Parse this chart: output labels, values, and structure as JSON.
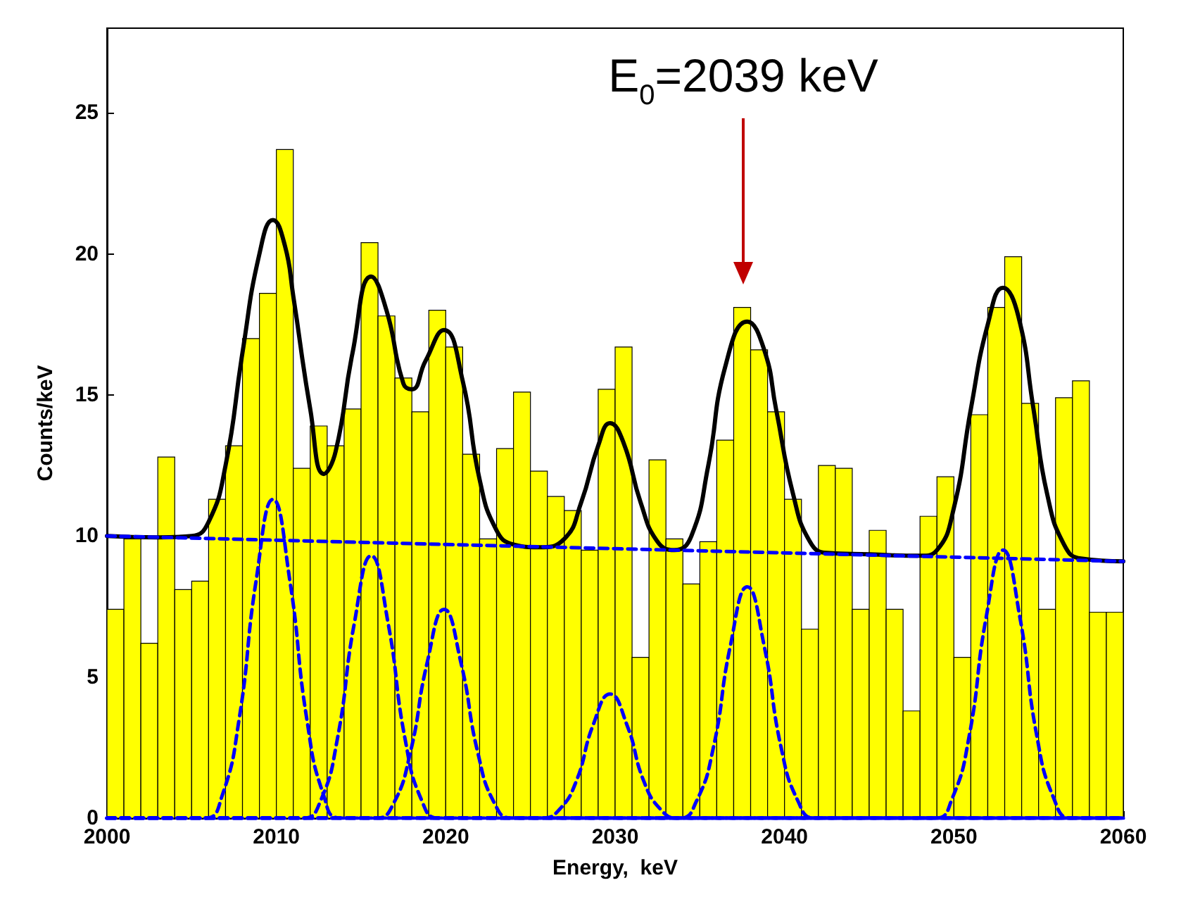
{
  "chart_data": {
    "type": "histogram",
    "xlabel": "Energy,  keV",
    "ylabel": "Counts/keV",
    "bins": [
      2000,
      2001,
      2002,
      2003,
      2004,
      2005,
      2006,
      2007,
      2008,
      2009,
      2010,
      2011,
      2012,
      2013,
      2014,
      2015,
      2016,
      2017,
      2018,
      2019,
      2020,
      2021,
      2022,
      2023,
      2024,
      2025,
      2026,
      2027,
      2028,
      2029,
      2030,
      2031,
      2032,
      2033,
      2034,
      2035,
      2036,
      2037,
      2038,
      2039,
      2040,
      2041,
      2042,
      2043,
      2044,
      2045,
      2046,
      2047,
      2048,
      2049,
      2050,
      2051,
      2052,
      2053,
      2054,
      2055,
      2056,
      2057,
      2058,
      2059,
      2060
    ],
    "values": [
      7.4,
      9.9,
      6.2,
      12.8,
      8.1,
      8.4,
      11.3,
      13.2,
      17.0,
      18.6,
      23.7,
      12.4,
      13.9,
      13.2,
      14.5,
      20.4,
      17.8,
      15.6,
      14.4,
      18.0,
      16.7,
      12.9,
      9.9,
      13.1,
      15.1,
      12.3,
      11.4,
      10.9,
      9.5,
      15.2,
      16.7,
      5.7,
      12.7,
      9.9,
      8.3,
      9.8,
      13.4,
      18.1,
      16.6,
      14.4,
      11.3,
      6.7,
      12.5,
      12.4,
      7.4,
      10.2,
      7.4,
      3.8,
      10.7,
      12.1,
      5.7,
      14.3,
      18.1,
      19.9,
      14.7,
      7.4,
      14.9,
      15.5,
      7.3,
      7.3
    ],
    "color": "#ffff00",
    "series": [
      {
        "type": "line",
        "color": "#000000",
        "line_style": "solid",
        "x": [
          2000,
          2003,
          2005,
          2006,
          2007,
          2008,
          2009,
          2009.8,
          2010.5,
          2011,
          2012,
          2012.8,
          2013.5,
          2014.5,
          2015.6,
          2016.5,
          2017.5,
          2018,
          2018.8,
          2019.9,
          2021,
          2022,
          2023,
          2024,
          2025.5,
          2027,
          2028,
          2029,
          2029.7,
          2030.5,
          2031.5,
          2032.5,
          2033.5,
          2034.5,
          2035.5,
          2036.5,
          2037.8,
          2038.8,
          2039.5,
          2040.5,
          2041.5,
          2042.5,
          2045,
          2048,
          2049,
          2050,
          2051,
          2052,
          2052.9,
          2053.8,
          2054.7,
          2055.5,
          2056.5,
          2057.5,
          2060
        ],
        "values": [
          10.0,
          9.95,
          10.0,
          10.5,
          12.5,
          16.5,
          20.0,
          21.2,
          20.3,
          18.5,
          14.5,
          12.2,
          13.0,
          16.5,
          19.2,
          18.0,
          15.4,
          15.2,
          16.2,
          17.3,
          15.5,
          12.0,
          10.2,
          9.7,
          9.6,
          9.9,
          11.2,
          13.2,
          14.0,
          13.3,
          11.2,
          9.8,
          9.5,
          10.0,
          12.5,
          16.0,
          17.6,
          16.6,
          14.5,
          11.5,
          9.8,
          9.4,
          9.35,
          9.3,
          9.5,
          11.0,
          14.5,
          17.5,
          18.8,
          17.8,
          14.5,
          11.5,
          9.7,
          9.2,
          9.1
        ]
      },
      {
        "type": "line",
        "color": "#0000ff",
        "line_style": "dashed",
        "x": [
          2000,
          2060
        ],
        "values": [
          10.0,
          9.1
        ]
      },
      {
        "type": "line",
        "color": "#0000ff",
        "line_style": "dashed",
        "x": [
          2000,
          2005.8,
          2006.8,
          2007.8,
          2008.8,
          2009.8,
          2010.8,
          2011.8,
          2012.8,
          2013.8,
          2060
        ],
        "values": [
          0,
          0,
          0.8,
          3.5,
          8.4,
          11.3,
          8.4,
          3.5,
          0.8,
          0,
          0
        ]
      },
      {
        "type": "line",
        "color": "#0000ff",
        "line_style": "dashed",
        "x": [
          2000,
          2011.6,
          2012.6,
          2013.6,
          2014.6,
          2015.6,
          2016.6,
          2017.6,
          2018.6,
          2019.6,
          2060
        ],
        "values": [
          0,
          0,
          0.6,
          2.8,
          6.9,
          9.3,
          6.9,
          2.8,
          0.6,
          0,
          0
        ]
      },
      {
        "type": "line",
        "color": "#0000ff",
        "line_style": "dashed",
        "x": [
          2000,
          2015.9,
          2016.9,
          2017.9,
          2018.9,
          2019.9,
          2020.9,
          2021.9,
          2022.9,
          2023.9,
          2060
        ],
        "values": [
          0,
          0,
          0.5,
          2.3,
          5.5,
          7.4,
          5.5,
          2.3,
          0.5,
          0,
          0
        ]
      },
      {
        "type": "line",
        "color": "#0000ff",
        "line_style": "dashed",
        "x": [
          2000,
          2025.7,
          2026.7,
          2027.7,
          2028.7,
          2029.7,
          2030.7,
          2031.7,
          2032.7,
          2033.7,
          2060
        ],
        "values": [
          0,
          0,
          0.3,
          1.3,
          3.3,
          4.4,
          3.3,
          1.3,
          0.3,
          0,
          0
        ]
      },
      {
        "type": "line",
        "color": "#0000ff",
        "line_style": "dashed",
        "x": [
          2000,
          2033.8,
          2034.8,
          2035.8,
          2036.8,
          2037.8,
          2038.8,
          2039.8,
          2040.8,
          2041.8,
          2060
        ],
        "values": [
          0,
          0,
          0.6,
          2.5,
          6.1,
          8.2,
          6.1,
          2.5,
          0.6,
          0,
          0
        ]
      },
      {
        "type": "line",
        "color": "#0000ff",
        "line_style": "dashed",
        "x": [
          2000,
          2048.9,
          2049.9,
          2050.9,
          2051.9,
          2052.9,
          2053.9,
          2054.9,
          2055.9,
          2056.9,
          2060
        ],
        "values": [
          0,
          0,
          0.7,
          2.9,
          7.1,
          9.5,
          7.1,
          2.9,
          0.7,
          0,
          0
        ]
      }
    ],
    "annotations": [
      "E$_{0}$=2039 keV"
    ],
    "xlim": [
      2000,
      2060
    ],
    "xticks": [
      2000,
      2010,
      2020,
      2030,
      2040,
      2050,
      2060
    ],
    "ylim": [
      0,
      28
    ],
    "yticks": [
      0,
      5,
      10,
      15,
      20,
      25
    ]
  }
}
